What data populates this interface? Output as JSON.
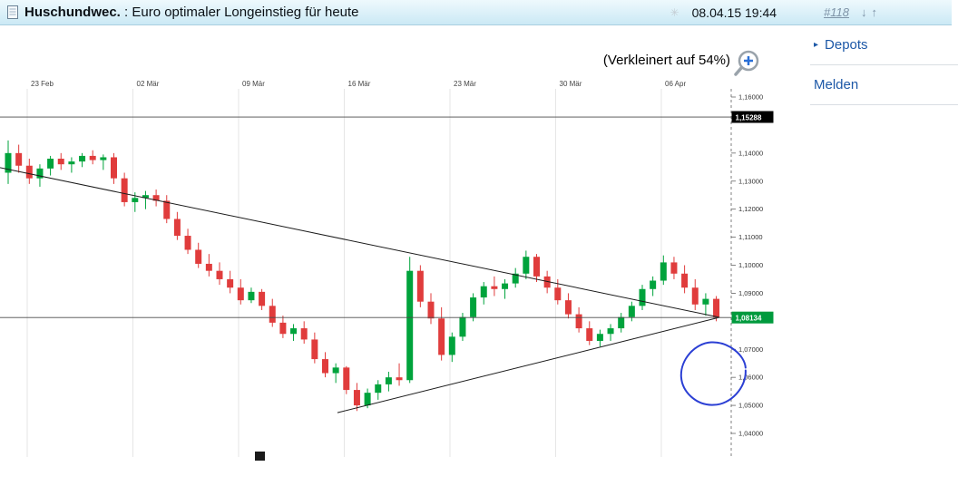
{
  "header": {
    "author": "Huschundwec.",
    "title_rest": " : Euro optimaler Longeinstieg für heute",
    "datetime": "08.04.15 19:44",
    "post_number": "#118",
    "nav_down": "↓",
    "nav_up": "↑",
    "sparkle": "✳"
  },
  "sidebar": {
    "items": [
      {
        "bullet": "▸",
        "label": "Depots"
      },
      {
        "bullet": "",
        "label": "Melden"
      }
    ]
  },
  "chart": {
    "zoom_note": "(Verkleinert auf 54%)"
  },
  "chart_data": {
    "type": "candlestick",
    "instrument_hint": "Euro (EUR/USD)",
    "x_labels": [
      "23 Feb",
      "02 Mär",
      "09 Mär",
      "16 Mär",
      "23 Mär",
      "30 Mär",
      "06 Apr"
    ],
    "y_axis": {
      "min": 1.04,
      "max": 1.16,
      "visible_ticks": [
        {
          "value": 1.16,
          "label": "1,16000"
        },
        {
          "value": 1.14,
          "label": "1,14000"
        },
        {
          "value": 1.13,
          "label": "1,13000"
        },
        {
          "value": 1.12,
          "label": "1,12000"
        },
        {
          "value": 1.11,
          "label": "1,11000"
        },
        {
          "value": 1.1,
          "label": "1,10000"
        },
        {
          "value": 1.09,
          "label": "1,09000"
        },
        {
          "value": 1.07,
          "label": "1,07000"
        },
        {
          "value": 1.06,
          "label": "1,06000"
        },
        {
          "value": 1.05,
          "label": "1,05000"
        },
        {
          "value": 1.04,
          "label": "1,04000"
        }
      ]
    },
    "price_markers": [
      {
        "value": 1.15288,
        "label": "1,15288",
        "bg": "#000000",
        "fg": "#ffffff"
      },
      {
        "value": 1.08134,
        "label": "1,08134",
        "bg": "#009a3d",
        "fg": "#ffffff"
      }
    ],
    "trendlines": [
      {
        "x1_frac": 0.0,
        "price1": 1.1348,
        "x2_frac": 0.984,
        "price2": 1.0814
      },
      {
        "x1_frac": 0.4615,
        "price1": 1.0474,
        "x2_frac": 0.984,
        "price2": 1.0814
      }
    ],
    "annotation": {
      "type": "hand-drawn-circle",
      "x_frac": 0.975,
      "price": 1.0615,
      "radius_px": 33,
      "color": "#2b3fd4"
    },
    "colors": {
      "up": "#00a33c",
      "down": "#e03c3c",
      "grid": "#e6e6e6",
      "axis": "#808080"
    },
    "candles": [
      [
        1.133,
        1.1445,
        1.129,
        1.14
      ],
      [
        1.14,
        1.143,
        1.133,
        1.1355
      ],
      [
        1.1355,
        1.138,
        1.129,
        1.131
      ],
      [
        1.131,
        1.136,
        1.128,
        1.1345
      ],
      [
        1.1345,
        1.139,
        1.132,
        1.138
      ],
      [
        1.138,
        1.14,
        1.134,
        1.136
      ],
      [
        1.136,
        1.1385,
        1.133,
        1.137
      ],
      [
        1.137,
        1.14,
        1.135,
        1.139
      ],
      [
        1.139,
        1.141,
        1.136,
        1.1375
      ],
      [
        1.1375,
        1.1395,
        1.134,
        1.1385
      ],
      [
        1.1385,
        1.14,
        1.129,
        1.131
      ],
      [
        1.131,
        1.133,
        1.121,
        1.1225
      ],
      [
        1.1225,
        1.126,
        1.119,
        1.124
      ],
      [
        1.124,
        1.1265,
        1.12,
        1.125
      ],
      [
        1.125,
        1.127,
        1.121,
        1.123
      ],
      [
        1.123,
        1.125,
        1.115,
        1.1165
      ],
      [
        1.1165,
        1.119,
        1.109,
        1.1105
      ],
      [
        1.1105,
        1.113,
        1.104,
        1.1055
      ],
      [
        1.1055,
        1.108,
        1.099,
        1.1005
      ],
      [
        1.1005,
        1.104,
        1.096,
        1.098
      ],
      [
        1.098,
        1.101,
        1.093,
        1.095
      ],
      [
        1.095,
        1.098,
        1.09,
        1.092
      ],
      [
        1.092,
        1.095,
        1.086,
        1.0875
      ],
      [
        1.0875,
        1.092,
        1.0865,
        1.0905
      ],
      [
        1.0905,
        1.0915,
        1.084,
        1.0855
      ],
      [
        1.0855,
        1.088,
        1.078,
        1.0795
      ],
      [
        1.0795,
        1.082,
        1.074,
        1.0755
      ],
      [
        1.0755,
        1.079,
        1.073,
        1.0775
      ],
      [
        1.0775,
        1.08,
        1.072,
        1.0735
      ],
      [
        1.0735,
        1.076,
        1.065,
        1.0665
      ],
      [
        1.0665,
        1.069,
        1.06,
        1.0615
      ],
      [
        1.0615,
        1.065,
        1.058,
        1.0635
      ],
      [
        1.0635,
        1.064,
        1.054,
        1.0555
      ],
      [
        1.0555,
        1.058,
        1.048,
        1.05
      ],
      [
        1.05,
        1.056,
        1.049,
        1.0545
      ],
      [
        1.0545,
        1.059,
        1.052,
        1.0575
      ],
      [
        1.0575,
        1.062,
        1.055,
        1.06
      ],
      [
        1.06,
        1.065,
        1.057,
        1.059
      ],
      [
        1.059,
        1.103,
        1.058,
        1.098
      ],
      [
        1.098,
        1.1,
        1.085,
        1.087
      ],
      [
        1.087,
        1.09,
        1.079,
        1.081
      ],
      [
        1.081,
        1.085,
        1.066,
        1.068
      ],
      [
        1.068,
        1.076,
        1.0655,
        1.0745
      ],
      [
        1.0745,
        1.083,
        1.073,
        1.0815
      ],
      [
        1.0815,
        1.09,
        1.08,
        1.0885
      ],
      [
        1.0885,
        1.094,
        1.086,
        1.0925
      ],
      [
        1.0925,
        1.096,
        1.089,
        1.0915
      ],
      [
        1.0915,
        1.095,
        1.088,
        1.0935
      ],
      [
        1.0935,
        1.099,
        1.092,
        1.097
      ],
      [
        1.097,
        1.1052,
        1.095,
        1.103
      ],
      [
        1.103,
        1.104,
        1.094,
        1.096
      ],
      [
        1.096,
        1.098,
        1.09,
        1.092
      ],
      [
        1.092,
        1.095,
        1.086,
        1.0875
      ],
      [
        1.0875,
        1.09,
        1.081,
        1.0825
      ],
      [
        1.0825,
        1.085,
        1.076,
        1.0775
      ],
      [
        1.0775,
        1.08,
        1.0715,
        1.073
      ],
      [
        1.073,
        1.077,
        1.071,
        1.0755
      ],
      [
        1.0755,
        1.079,
        1.073,
        1.0775
      ],
      [
        1.0775,
        1.083,
        1.076,
        1.0815
      ],
      [
        1.0815,
        1.087,
        1.08,
        1.0855
      ],
      [
        1.0855,
        1.093,
        1.084,
        1.0915
      ],
      [
        1.0915,
        1.096,
        1.089,
        1.0945
      ],
      [
        1.0945,
        1.1035,
        1.093,
        1.101
      ],
      [
        1.101,
        1.103,
        1.095,
        1.097
      ],
      [
        1.097,
        1.1,
        1.09,
        1.092
      ],
      [
        1.092,
        1.095,
        1.084,
        1.086
      ],
      [
        1.086,
        1.09,
        1.082,
        1.088
      ],
      [
        1.088,
        1.089,
        1.08,
        1.0813
      ]
    ]
  }
}
